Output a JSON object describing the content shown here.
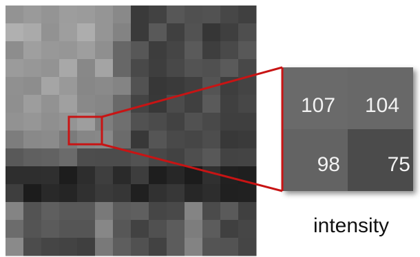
{
  "zoom": {
    "cells": [
      107,
      104,
      98,
      75
    ]
  },
  "caption": "intensity"
}
